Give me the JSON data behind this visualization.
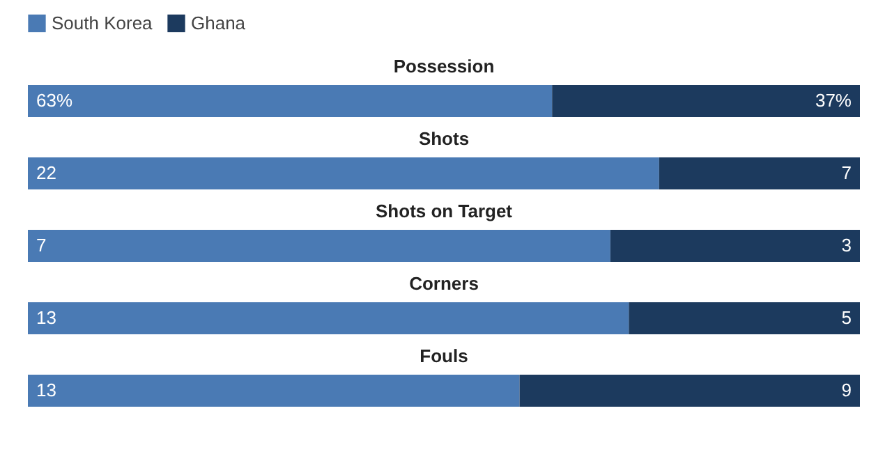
{
  "chart_data": [
    {
      "type": "bar",
      "title": "Possession",
      "orientation": "horizontal",
      "stacked": true,
      "categories": [
        null
      ],
      "xlim": [
        0,
        100
      ],
      "tick_labels": false,
      "legend": "top",
      "series": [
        {
          "name": "South Korea",
          "color": "#4a7ab4",
          "values": [
            63
          ],
          "value_labels": [
            "63%"
          ]
        },
        {
          "name": "Ghana",
          "color": "#1c3a5e",
          "values": [
            37
          ],
          "value_labels": [
            "37%"
          ]
        }
      ]
    },
    {
      "type": "bar",
      "title": "Shots",
      "orientation": "horizontal",
      "stacked": true,
      "categories": [
        null
      ],
      "xlim": [
        0,
        29
      ],
      "tick_labels": false,
      "data_labels": true,
      "series": [
        {
          "name": "South Korea",
          "color": "#4a7ab4",
          "values": [
            22
          ]
        },
        {
          "name": "Ghana",
          "color": "#1c3a5e",
          "values": [
            7
          ]
        }
      ]
    },
    {
      "type": "bar",
      "title": "Shots on Target",
      "orientation": "horizontal",
      "stacked": true,
      "categories": [
        null
      ],
      "xlim": [
        0,
        10
      ],
      "tick_labels": false,
      "data_labels": true,
      "series": [
        {
          "name": "South Korea",
          "color": "#4a7ab4",
          "values": [
            7
          ]
        },
        {
          "name": "Ghana",
          "color": "#1c3a5e",
          "values": [
            3
          ]
        }
      ]
    },
    {
      "type": "bar",
      "title": "Corners",
      "orientation": "horizontal",
      "stacked": true,
      "categories": [
        null
      ],
      "xlim": [
        0,
        18
      ],
      "tick_labels": false,
      "data_labels": true,
      "series": [
        {
          "name": "South Korea",
          "color": "#4a7ab4",
          "values": [
            13
          ]
        },
        {
          "name": "Ghana",
          "color": "#1c3a5e",
          "values": [
            5
          ]
        }
      ]
    },
    {
      "type": "bar",
      "title": "Fouls",
      "orientation": "horizontal",
      "stacked": true,
      "categories": [
        null
      ],
      "xlim": [
        0,
        22
      ],
      "tick_labels": false,
      "data_labels": true,
      "series": [
        {
          "name": "South Korea",
          "color": "#4a7ab4",
          "values": [
            13
          ]
        },
        {
          "name": "Ghana",
          "color": "#1c3a5e",
          "values": [
            9
          ]
        }
      ]
    }
  ]
}
